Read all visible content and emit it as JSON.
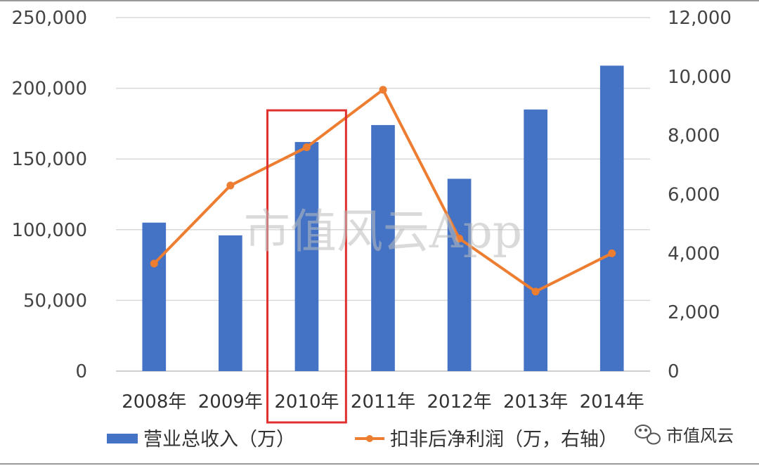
{
  "chart_data": {
    "type": "bar",
    "categories": [
      "2008年",
      "2009年",
      "2010年",
      "2011年",
      "2012年",
      "2013年",
      "2014年"
    ],
    "series": [
      {
        "name": "营业总收入（万）",
        "type": "bar",
        "axis": "left",
        "color": "#4472c4",
        "values": [
          105000,
          96000,
          162000,
          174000,
          136000,
          185000,
          216000
        ]
      },
      {
        "name": "扣非后净利润（万，右轴）",
        "type": "line",
        "axis": "right",
        "color": "#ed7d31",
        "values": [
          3650,
          6300,
          7600,
          9550,
          4500,
          2700,
          4000
        ]
      }
    ],
    "y_left": {
      "min": 0,
      "max": 250000,
      "ticks": [
        "0",
        "50,000",
        "100,000",
        "150,000",
        "200,000",
        "250,000"
      ]
    },
    "y_right": {
      "min": 0,
      "max": 12000,
      "ticks": [
        "0",
        "2,000",
        "4,000",
        "6,000",
        "8,000",
        "10,000",
        "12,000"
      ]
    },
    "grid": true,
    "legend": "bottom",
    "highlight": {
      "category": "2010年",
      "color": "#e03030"
    }
  },
  "watermark": "市值风云App",
  "brand": {
    "label": "市值风云",
    "icon": "wechat-icon"
  }
}
